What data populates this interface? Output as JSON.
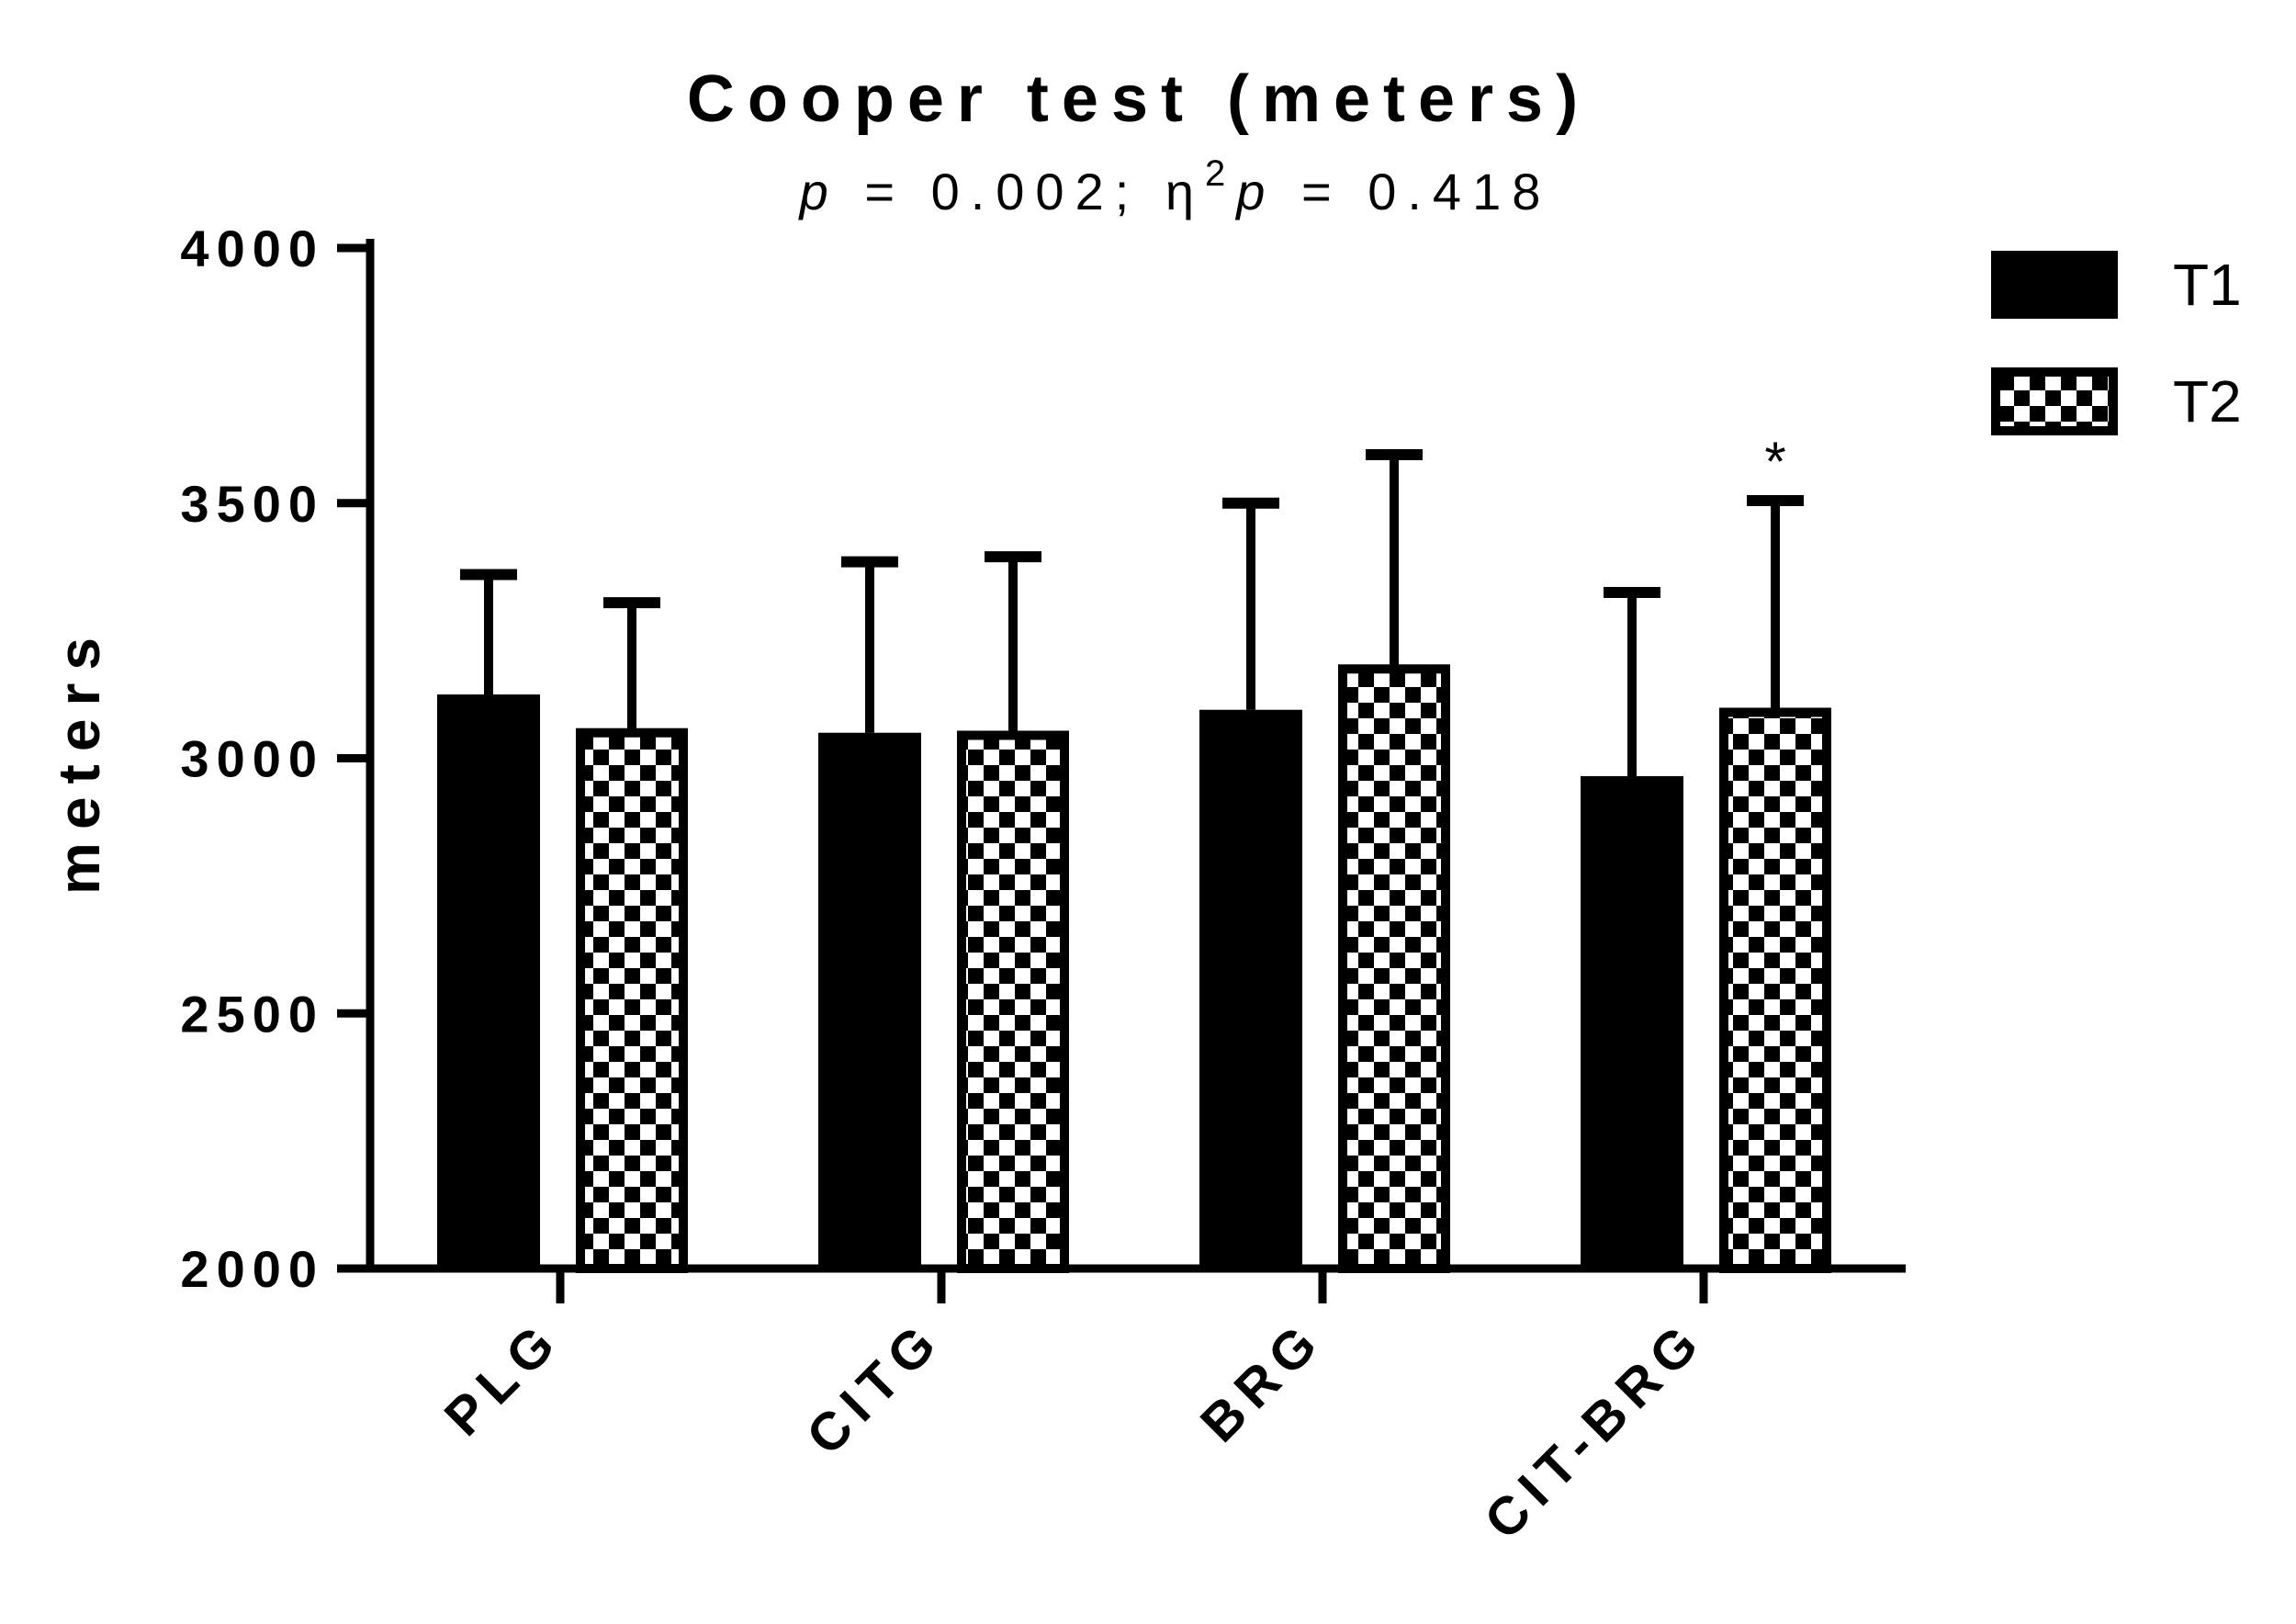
{
  "chart_data": {
    "type": "bar",
    "title": "Cooper test (meters)",
    "subtitle": {
      "p_label": "p",
      "p_text": " = 0.002; ",
      "eta": "η",
      "eta_sup": "2",
      "p2_label": "p",
      "p2_text": " = 0.418"
    },
    "ylabel": "meters",
    "xlabel": "",
    "ylim": [
      2000,
      4000
    ],
    "yticks": [
      2000,
      2500,
      3000,
      3500,
      4000
    ],
    "categories": [
      "PLG",
      "CITG",
      "BRG",
      "CIT-BRG"
    ],
    "series": [
      {
        "name": "T1",
        "pattern": "solid",
        "color": "#000000",
        "values": [
          3125,
          3050,
          3095,
          2965
        ],
        "error_upper": [
          3360,
          3385,
          3500,
          3325
        ]
      },
      {
        "name": "T2",
        "pattern": "checkerboard",
        "color": "#000000",
        "values": [
          3050,
          3045,
          3175,
          3090
        ],
        "error_upper": [
          3305,
          3395,
          3595,
          3505
        ]
      }
    ],
    "annotations": [
      {
        "text": "*",
        "category": "CIT-BRG",
        "series": "T2"
      }
    ],
    "legend_position": "top-right",
    "grid": false
  }
}
